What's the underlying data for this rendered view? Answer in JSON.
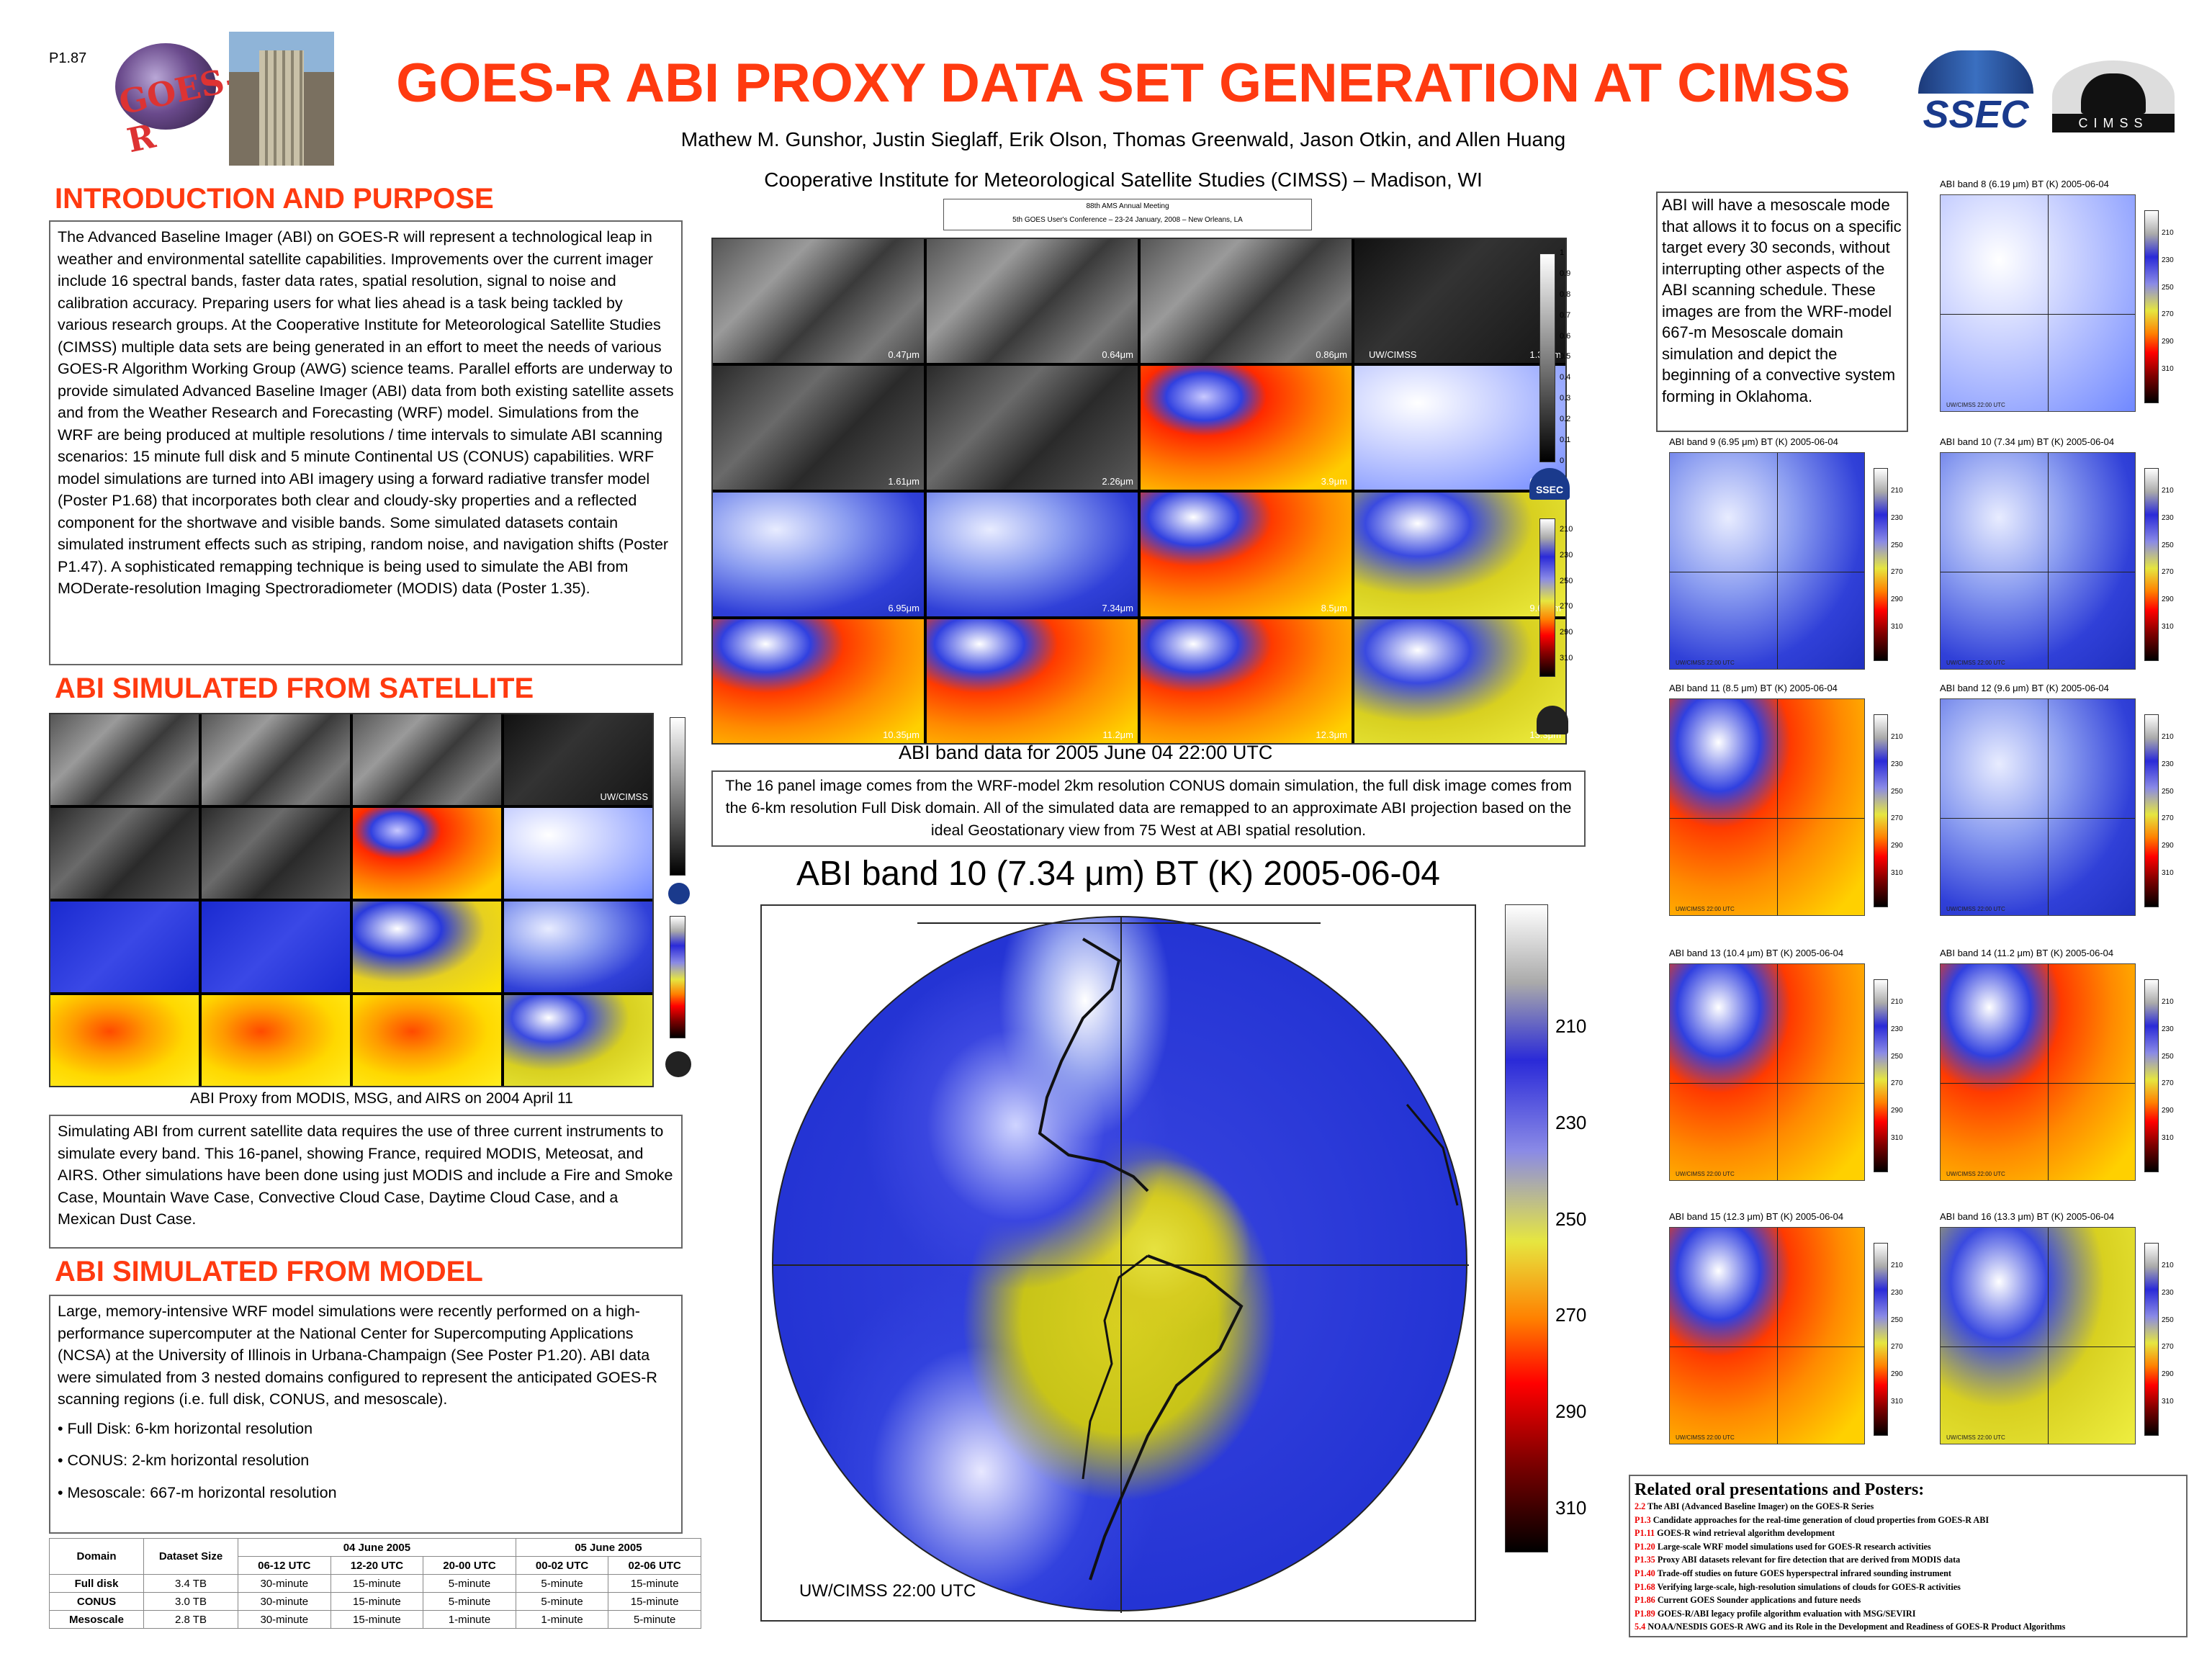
{
  "poster_id": "P1.87",
  "title": "GOES-R ABI PROXY DATA SET GENERATION AT CIMSS",
  "authors": "Mathew M. Gunshor, Justin Sieglaff,  Erik Olson, Thomas Greenwald, Jason Otkin, and Allen Huang",
  "affiliation": "Cooperative Institute for Meteorological Satellite Studies (CIMSS) – Madison, WI",
  "conference": {
    "line1": "88th AMS Annual Meeting",
    "line2": "5th GOES User's Conference – 23-24 January, 2008 – New Orleans, LA"
  },
  "logos": {
    "goesr": "GOES-R",
    "ssec": "SSEC",
    "cimss": "CIMSS"
  },
  "intro": {
    "heading": "INTRODUCTION AND PURPOSE",
    "body": "The Advanced Baseline Imager (ABI) on GOES-R will represent a technological leap in weather and environmental satellite capabilities. Improvements over the current imager include 16 spectral bands, faster data rates, spatial resolution, signal to noise and calibration accuracy. Preparing users for what lies ahead is a task being tackled by various research groups. At the Cooperative Institute for Meteorological Satellite Studies (CIMSS) multiple data sets are being generated in an effort to meet the needs of various GOES-R Algorithm Working Group (AWG) science teams. Parallel efforts are underway to provide simulated Advanced Baseline Imager (ABI) data from both existing satellite assets and from the Weather Research and Forecasting (WRF) model. Simulations from the WRF are being produced at multiple resolutions / time intervals to simulate ABI scanning scenarios: 15 minute full disk and 5 minute Continental US (CONUS) capabilities. WRF model simulations are turned into ABI imagery using a forward radiative transfer model (Poster P1.68) that incorporates both clear and cloudy-sky properties and a reflected component for the shortwave and visible bands. Some simulated datasets contain simulated instrument effects such as striping, random noise, and navigation shifts (Poster P1.47).  A sophisticated remapping technique is being used to simulate the ABI from MODerate-resolution Imaging Spectroradiometer (MODIS) data (Poster 1.35)."
  },
  "satellite": {
    "heading": "ABI SIMULATED FROM SATELLITE",
    "panel_caption": "ABI Proxy from MODIS, MSG, and AIRS on 2004 April 11",
    "body": "Simulating ABI from current satellite data requires the use of three current instruments to simulate every band.  This 16-panel, showing France, required MODIS, Meteosat, and AIRS.  Other simulations have been done using just MODIS and include a Fire and Smoke Case, Mountain Wave Case, Convective Cloud Case, Daytime Cloud Case, and a Mexican Dust Case.",
    "tile_labels": [
      "",
      "",
      "",
      "UW/CIMSS",
      "",
      "",
      "",
      "",
      "",
      "",
      "",
      "",
      "",
      "",
      "",
      ""
    ]
  },
  "model": {
    "heading": "ABI SIMULATED FROM MODEL",
    "body": "Large, memory-intensive WRF model simulations were recently performed on a high-performance supercomputer at the National Center for Supercomputing Applications (NCSA) at the University of Illinois in Urbana-Champaign (See Poster P1.20).  ABI data were simulated from 3 nested domains configured to represent the anticipated GOES-R scanning regions (i.e. full disk, CONUS, and mesoscale).",
    "bullets": [
      "• Full Disk: 6-km horizontal resolution",
      "• CONUS: 2-km horizontal resolution",
      "• Mesoscale: 667-m horizontal resolution"
    ]
  },
  "table": {
    "col_domain": "Domain",
    "col_size": "Dataset Size",
    "date1": "04 June 2005",
    "date2": "05 June 2005",
    "times": [
      "06-12 UTC",
      "12-20 UTC",
      "20-00 UTC",
      "00-02 UTC",
      "02-06 UTC"
    ],
    "rows": [
      {
        "domain": "Full disk",
        "size": "3.4 TB",
        "v": [
          "30-minute",
          "15-minute",
          "5-minute",
          "5-minute",
          "15-minute"
        ]
      },
      {
        "domain": "CONUS",
        "size": "3.0 TB",
        "v": [
          "30-minute",
          "15-minute",
          "5-minute",
          "5-minute",
          "15-minute"
        ]
      },
      {
        "domain": "Mesoscale",
        "size": "2.8 TB",
        "v": [
          "30-minute",
          "15-minute",
          "1-minute",
          "1-minute",
          "5-minute"
        ]
      }
    ]
  },
  "conus": {
    "tile_labels": [
      "0.47μm",
      "0.64μm",
      "0.86μm",
      "1.38μm",
      "1.61μm",
      "2.26μm",
      "3.9μm",
      "6.19μm",
      "6.95μm",
      "7.34μm",
      "8.5μm",
      "9.61μm",
      "10.35μm",
      "11.2μm",
      "12.3μm",
      "13.3μm"
    ],
    "uw_label": "UW/CIMSS",
    "caption": "ABI band data for 2005 June 04 22:00 UTC",
    "description": "The 16 panel image comes from the WRF-model 2km resolution CONUS domain simulation, the full disk image comes from the 6-km resolution Full Disk domain.  All of the simulated data are remapped to an approximate ABI projection based on the ideal Geostationary view from 75 West at ABI spatial resolution.",
    "gray_ticks": [
      "1",
      "0.9",
      "0.8",
      "0.7",
      "0.6",
      "0.5",
      "0.4",
      "0.3",
      "0.2",
      "0.1",
      "0"
    ],
    "temp_ticks": [
      "210",
      "230",
      "250",
      "270",
      "290",
      "310"
    ]
  },
  "fulldisk": {
    "title": "ABI band 10 (7.34 μm)   BT (K) 2005-06-04",
    "footer": "UW/CIMSS 22:00 UTC",
    "ticks": [
      "210",
      "230",
      "250",
      "270",
      "290",
      "310"
    ]
  },
  "meso": {
    "intro": "ABI will have a mesoscale mode that allows it to focus on a specific target every 30 seconds, without interrupting other aspects of the ABI scanning schedule.  These images are from the WRF-model 667-m Mesoscale domain simulation and depict the beginning of a convective system forming in Oklahoma.",
    "footer": "UW/CIMSS 22:00 UTC",
    "ticks": [
      "210",
      "230",
      "250",
      "270",
      "290",
      "310"
    ],
    "panels": [
      {
        "title": "ABI band 8 (6.19 μm)   BT (K) 2005-06-04"
      },
      {
        "title": "ABI band 9 (6.95 μm)   BT (K) 2005-06-04"
      },
      {
        "title": "ABI band 10 (7.34 μm)   BT (K) 2005-06-04"
      },
      {
        "title": "ABI band 11 (8.5 μm)   BT (K) 2005-06-04"
      },
      {
        "title": "ABI band 12 (9.6 μm)   BT (K) 2005-06-04"
      },
      {
        "title": "ABI band 13 (10.4 μm)   BT (K) 2005-06-04"
      },
      {
        "title": "ABI band 14 (11.2 μm)   BT (K) 2005-06-04"
      },
      {
        "title": "ABI band 15 (12.3 μm)   BT (K) 2005-06-04"
      },
      {
        "title": "ABI band 16 (13.3 μm)   BT (K) 2005-06-04"
      }
    ]
  },
  "related": {
    "heading": "Related oral presentations and Posters:",
    "items": [
      {
        "code": "2.2",
        "text": " The ABI (Advanced Baseline Imager) on the GOES-R Series"
      },
      {
        "code": "P1.3",
        "text": " Candidate approaches for the real-time generation of cloud properties from GOES-R ABI"
      },
      {
        "code": "P1.11",
        "text": " GOES-R wind retrieval algorithm development"
      },
      {
        "code": "P1.20",
        "text": " Large-scale WRF model simulations used for GOES-R research activities"
      },
      {
        "code": "P1.35",
        "text": " Proxy ABI datasets relevant for fire detection that are derived from MODIS data"
      },
      {
        "code": "P1.40",
        "text": " Trade-off studies on future GOES hyperspectral infrared sounding instrument"
      },
      {
        "code": "P1.68",
        "text": " Verifying large-scale, high-resolution simulations of clouds for GOES-R activities"
      },
      {
        "code": "P1.86",
        "text": " Current GOES Sounder applications and future needs"
      },
      {
        "code": "P1.89",
        "text": " GOES-R/ABI legacy profile algorithm evaluation with MSG/SEVIRI"
      },
      {
        "code": "5.4",
        "text": " NOAA/NESDIS GOES-R AWG and its Role in the Development and Readiness of GOES-R Product Algorithms"
      }
    ]
  },
  "colors": {
    "title": "#ff3a10",
    "section": "#ff3a10",
    "code": "#e00000"
  }
}
